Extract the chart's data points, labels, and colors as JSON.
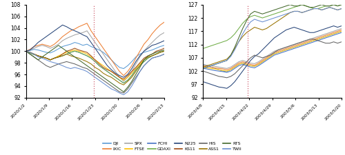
{
  "covid_dates": [
    "2020/1/2",
    "2020/1/9",
    "2020/1/16",
    "2020/1/23",
    "2020/1/30",
    "2020/2/6",
    "2020/2/13"
  ],
  "covid_vline_x": 0.49,
  "covid_ylim": [
    92,
    108
  ],
  "covid_yticks": [
    92,
    94,
    96,
    98,
    100,
    102,
    104,
    106,
    108
  ],
  "covid_n_points": 35,
  "covid_series": {
    "DJI": [
      100.0,
      100.1,
      100.3,
      100.2,
      100.0,
      99.8,
      99.7,
      100.0,
      100.4,
      100.8,
      101.0,
      101.2,
      101.5,
      101.3,
      101.0,
      101.2,
      100.8,
      100.5,
      100.2,
      99.8,
      99.2,
      98.5,
      97.8,
      97.2,
      97.0,
      97.5,
      98.2,
      99.0,
      99.5,
      99.8,
      100.0,
      100.2,
      100.5,
      100.8,
      101.0
    ],
    "IXIC": [
      100.0,
      100.3,
      100.8,
      101.0,
      101.2,
      101.0,
      100.8,
      101.2,
      101.8,
      102.5,
      103.0,
      103.5,
      103.8,
      104.2,
      104.5,
      104.8,
      103.5,
      102.5,
      101.5,
      100.5,
      99.5,
      98.5,
      97.5,
      96.5,
      95.8,
      96.5,
      97.5,
      98.8,
      100.0,
      101.2,
      102.0,
      103.0,
      103.8,
      104.5,
      105.0
    ],
    "SPX": [
      100.0,
      100.2,
      100.5,
      100.8,
      101.0,
      100.8,
      100.5,
      100.8,
      101.2,
      101.8,
      102.2,
      102.5,
      102.8,
      103.0,
      103.2,
      103.5,
      102.5,
      101.5,
      100.5,
      99.5,
      98.5,
      97.5,
      96.5,
      95.5,
      94.8,
      95.5,
      96.5,
      97.8,
      99.0,
      100.0,
      100.8,
      101.5,
      102.2,
      102.8,
      103.2
    ],
    "FTSE": [
      100.0,
      99.8,
      99.5,
      99.2,
      99.0,
      98.8,
      98.5,
      98.8,
      99.2,
      99.5,
      99.8,
      100.0,
      100.2,
      100.0,
      99.8,
      99.5,
      99.0,
      98.5,
      98.0,
      97.5,
      97.0,
      96.5,
      96.0,
      95.5,
      95.0,
      95.5,
      96.2,
      97.0,
      97.8,
      98.5,
      99.0,
      99.2,
      99.5,
      99.8,
      100.0
    ],
    "FCHI": [
      100.0,
      99.7,
      99.4,
      99.2,
      99.0,
      98.8,
      98.5,
      98.8,
      99.0,
      99.2,
      99.5,
      99.8,
      100.0,
      99.8,
      99.5,
      99.2,
      98.8,
      98.2,
      97.5,
      97.0,
      96.5,
      96.0,
      95.5,
      95.0,
      94.5,
      95.0,
      95.8,
      96.8,
      97.5,
      98.2,
      98.8,
      99.2,
      99.5,
      99.8,
      100.0
    ],
    "GDAXI": [
      100.0,
      99.7,
      99.4,
      99.2,
      99.0,
      98.8,
      98.5,
      98.8,
      99.0,
      99.2,
      99.5,
      99.8,
      100.0,
      99.8,
      99.5,
      99.2,
      98.8,
      98.2,
      97.5,
      97.0,
      96.5,
      96.0,
      95.5,
      95.0,
      94.5,
      95.0,
      95.8,
      96.8,
      97.5,
      98.2,
      98.8,
      99.2,
      99.5,
      99.8,
      100.0
    ],
    "N225": [
      100.0,
      100.2,
      100.8,
      101.5,
      102.0,
      102.5,
      103.0,
      103.5,
      104.0,
      104.5,
      104.2,
      103.8,
      103.5,
      103.2,
      102.8,
      102.5,
      101.5,
      100.5,
      99.5,
      98.5,
      97.5,
      96.8,
      96.2,
      95.8,
      95.5,
      96.0,
      97.0,
      98.2,
      99.2,
      100.0,
      100.5,
      101.0,
      101.2,
      101.5,
      101.8
    ],
    "KS11": [
      100.0,
      99.8,
      99.5,
      99.2,
      99.0,
      98.8,
      98.5,
      98.8,
      99.0,
      99.5,
      100.0,
      100.2,
      100.5,
      100.2,
      100.0,
      99.8,
      99.2,
      98.5,
      97.8,
      97.2,
      96.8,
      96.5,
      96.0,
      95.5,
      95.2,
      95.8,
      96.5,
      97.2,
      98.0,
      98.8,
      99.2,
      99.5,
      100.0,
      100.2,
      100.5
    ],
    "HIS": [
      100.0,
      99.5,
      99.0,
      98.5,
      98.0,
      97.5,
      97.2,
      97.5,
      97.8,
      98.0,
      98.2,
      98.0,
      97.8,
      97.5,
      97.2,
      97.0,
      96.5,
      96.0,
      95.5,
      95.0,
      94.5,
      94.0,
      93.5,
      93.0,
      92.8,
      93.5,
      94.5,
      95.5,
      96.5,
      97.5,
      98.2,
      98.8,
      99.0,
      99.2,
      99.5
    ],
    "ASS1": [
      100.0,
      99.8,
      99.5,
      99.2,
      99.0,
      98.8,
      98.5,
      98.8,
      99.0,
      99.2,
      99.5,
      99.2,
      99.0,
      98.8,
      98.5,
      98.2,
      97.8,
      97.2,
      96.8,
      96.2,
      95.8,
      95.5,
      95.0,
      94.5,
      94.2,
      94.8,
      95.5,
      96.5,
      97.5,
      98.5,
      99.0,
      99.2,
      99.5,
      99.8,
      100.0
    ],
    "RTS": [
      100.0,
      99.5,
      99.0,
      98.5,
      99.0,
      99.5,
      100.0,
      100.5,
      101.0,
      100.5,
      100.0,
      99.5,
      99.0,
      98.5,
      98.0,
      97.5,
      97.0,
      96.5,
      96.0,
      95.5,
      95.0,
      94.5,
      94.0,
      93.5,
      93.0,
      93.8,
      94.8,
      96.0,
      97.2,
      98.5,
      99.2,
      99.5,
      99.8,
      100.0,
      100.2
    ],
    "TWII": [
      100.0,
      99.8,
      99.5,
      99.0,
      98.8,
      98.5,
      98.2,
      98.0,
      97.8,
      97.5,
      97.2,
      97.0,
      97.2,
      97.0,
      96.8,
      96.5,
      96.0,
      95.5,
      95.0,
      94.5,
      94.0,
      93.5,
      93.2,
      92.8,
      92.5,
      93.0,
      94.0,
      95.2,
      96.5,
      97.5,
      98.2,
      98.8,
      99.0,
      99.2,
      99.5
    ]
  },
  "sars_dates": [
    "2003/4/8",
    "2003/4/15",
    "2003/4/22",
    "2003/4/29",
    "2003/5/6",
    "2003/5/13",
    "2003/5/20"
  ],
  "sars_vline_x": 0.32,
  "sars_ylim": [
    92,
    127
  ],
  "sars_yticks": [
    92,
    97,
    102,
    107,
    112,
    117,
    122,
    127
  ],
  "sars_n_points": 36,
  "sars_series": {
    "DJI": [
      104.5,
      104.0,
      103.5,
      103.0,
      102.5,
      102.0,
      101.8,
      102.5,
      103.5,
      104.5,
      105.0,
      104.5,
      104.0,
      103.8,
      104.5,
      105.5,
      106.5,
      107.5,
      108.5,
      109.0,
      109.5,
      110.0,
      110.5,
      111.0,
      111.5,
      112.0,
      112.5,
      113.0,
      113.5,
      114.0,
      114.5,
      115.0,
      115.5,
      116.0,
      116.5,
      117.0
    ],
    "IXIC": [
      104.0,
      103.8,
      103.5,
      103.2,
      103.0,
      102.8,
      102.5,
      103.0,
      104.0,
      105.0,
      105.5,
      105.0,
      104.5,
      104.2,
      105.0,
      106.0,
      107.0,
      108.0,
      109.0,
      109.5,
      110.0,
      110.5,
      111.0,
      111.5,
      112.0,
      112.5,
      113.0,
      113.5,
      114.0,
      114.5,
      115.0,
      115.5,
      116.0,
      116.5,
      117.0,
      117.5
    ],
    "SPX": [
      104.5,
      104.2,
      104.0,
      103.8,
      103.5,
      103.2,
      103.0,
      103.5,
      104.5,
      105.5,
      106.0,
      105.5,
      105.0,
      104.8,
      105.5,
      106.5,
      107.5,
      108.5,
      109.5,
      110.0,
      110.5,
      111.0,
      111.5,
      112.0,
      112.5,
      113.0,
      113.5,
      114.0,
      114.5,
      115.0,
      115.5,
      116.0,
      116.5,
      117.0,
      117.5,
      118.0
    ],
    "FTSE": [
      103.5,
      103.2,
      103.0,
      102.8,
      102.5,
      102.2,
      102.0,
      102.5,
      103.5,
      104.5,
      105.0,
      104.5,
      104.0,
      103.8,
      104.5,
      105.5,
      106.5,
      107.5,
      108.5,
      109.0,
      109.5,
      110.0,
      110.5,
      111.0,
      111.5,
      112.0,
      112.5,
      113.0,
      113.5,
      114.0,
      114.5,
      115.0,
      115.5,
      116.0,
      116.5,
      117.0
    ],
    "FCHI": [
      103.0,
      102.8,
      102.5,
      102.2,
      102.0,
      101.8,
      101.5,
      102.0,
      103.0,
      104.0,
      104.5,
      104.0,
      103.5,
      103.2,
      104.0,
      105.0,
      106.0,
      107.0,
      108.0,
      108.5,
      109.0,
      109.5,
      110.0,
      110.5,
      111.0,
      111.5,
      112.0,
      112.5,
      113.0,
      113.5,
      114.0,
      114.5,
      115.0,
      115.5,
      116.0,
      116.5
    ],
    "GDAXI": [
      110.5,
      111.0,
      111.5,
      112.0,
      112.5,
      113.0,
      113.5,
      114.5,
      116.0,
      118.0,
      120.0,
      121.5,
      122.5,
      123.0,
      122.5,
      122.0,
      122.5,
      123.0,
      123.5,
      124.0,
      124.5,
      125.0,
      125.5,
      126.0,
      126.5,
      127.0,
      126.5,
      126.0,
      125.5,
      125.5,
      126.0,
      126.5,
      126.5,
      127.0,
      126.5,
      127.0
    ],
    "N225": [
      98.0,
      97.5,
      97.0,
      96.5,
      96.0,
      95.8,
      95.5,
      96.5,
      98.0,
      100.0,
      102.0,
      104.0,
      106.0,
      107.5,
      108.5,
      110.0,
      111.5,
      113.0,
      114.5,
      115.5,
      116.5,
      117.5,
      118.0,
      118.5,
      118.0,
      117.5,
      117.0,
      116.5,
      116.5,
      117.0,
      117.5,
      118.0,
      118.5,
      119.0,
      118.5,
      119.0
    ],
    "HIS": [
      102.0,
      101.5,
      101.0,
      100.5,
      100.0,
      99.8,
      99.5,
      100.0,
      101.0,
      102.5,
      104.0,
      105.5,
      107.0,
      108.0,
      107.5,
      107.0,
      107.5,
      108.0,
      109.0,
      110.0,
      110.5,
      111.0,
      111.5,
      112.0,
      112.5,
      113.0,
      113.5,
      114.0,
      114.0,
      113.5,
      113.0,
      112.5,
      112.5,
      113.0,
      112.5,
      113.0
    ],
    "ASS1": [
      103.5,
      104.0,
      104.5,
      105.0,
      105.5,
      106.0,
      106.5,
      108.0,
      110.5,
      113.0,
      115.0,
      116.5,
      117.5,
      118.5,
      118.0,
      117.5,
      118.0,
      119.0,
      120.0,
      121.0,
      122.0,
      123.0,
      124.0,
      124.5,
      124.5,
      124.0,
      124.5,
      125.0,
      125.5,
      125.5,
      125.0,
      125.5,
      126.0,
      125.5,
      125.0,
      125.5
    ],
    "RTS": [
      103.0,
      103.5,
      104.0,
      104.5,
      105.0,
      105.5,
      106.0,
      108.0,
      111.0,
      114.5,
      118.0,
      121.0,
      123.5,
      124.5,
      124.0,
      123.5,
      124.0,
      124.5,
      125.0,
      125.5,
      126.0,
      126.5,
      127.0,
      126.5,
      126.5,
      127.0,
      126.5,
      126.0,
      126.0,
      126.5,
      127.0,
      126.5,
      126.5,
      127.0,
      126.5,
      127.0
    ],
    "TWII": [
      103.0,
      103.5,
      104.0,
      104.5,
      105.0,
      105.5,
      106.0,
      107.5,
      110.0,
      113.0,
      116.0,
      118.5,
      120.5,
      121.5,
      121.0,
      120.5,
      121.0,
      121.5,
      122.0,
      122.5,
      123.0,
      123.5,
      124.0,
      124.5,
      124.5,
      124.0,
      124.5,
      125.0,
      125.5,
      125.5,
      125.0,
      125.5,
      126.0,
      125.5,
      125.0,
      125.5
    ]
  },
  "colors": {
    "DJI": "#5b9bd5",
    "IXIC": "#ed7d31",
    "SPX": "#a5a5a5",
    "FTSE": "#ffc000",
    "FCHI": "#4472c4",
    "GDAXI": "#70ad47",
    "N225": "#264478",
    "KS11": "#9e480e",
    "HIS": "#636363",
    "ASS1": "#997300",
    "RTS": "#43682b",
    "TWII": "#698ed0"
  },
  "legend_row1": [
    "DJI",
    "IXIC",
    "SPX",
    "FTSE",
    "FCHI",
    "GDAXI"
  ],
  "legend_row2_covid": [
    "N225",
    "KS11",
    "HIS",
    "ASS1",
    "RTS",
    "TWII"
  ],
  "legend_row2_sars": [
    "N225",
    "HIS",
    "ASS1",
    "RTS",
    "TWII"
  ]
}
